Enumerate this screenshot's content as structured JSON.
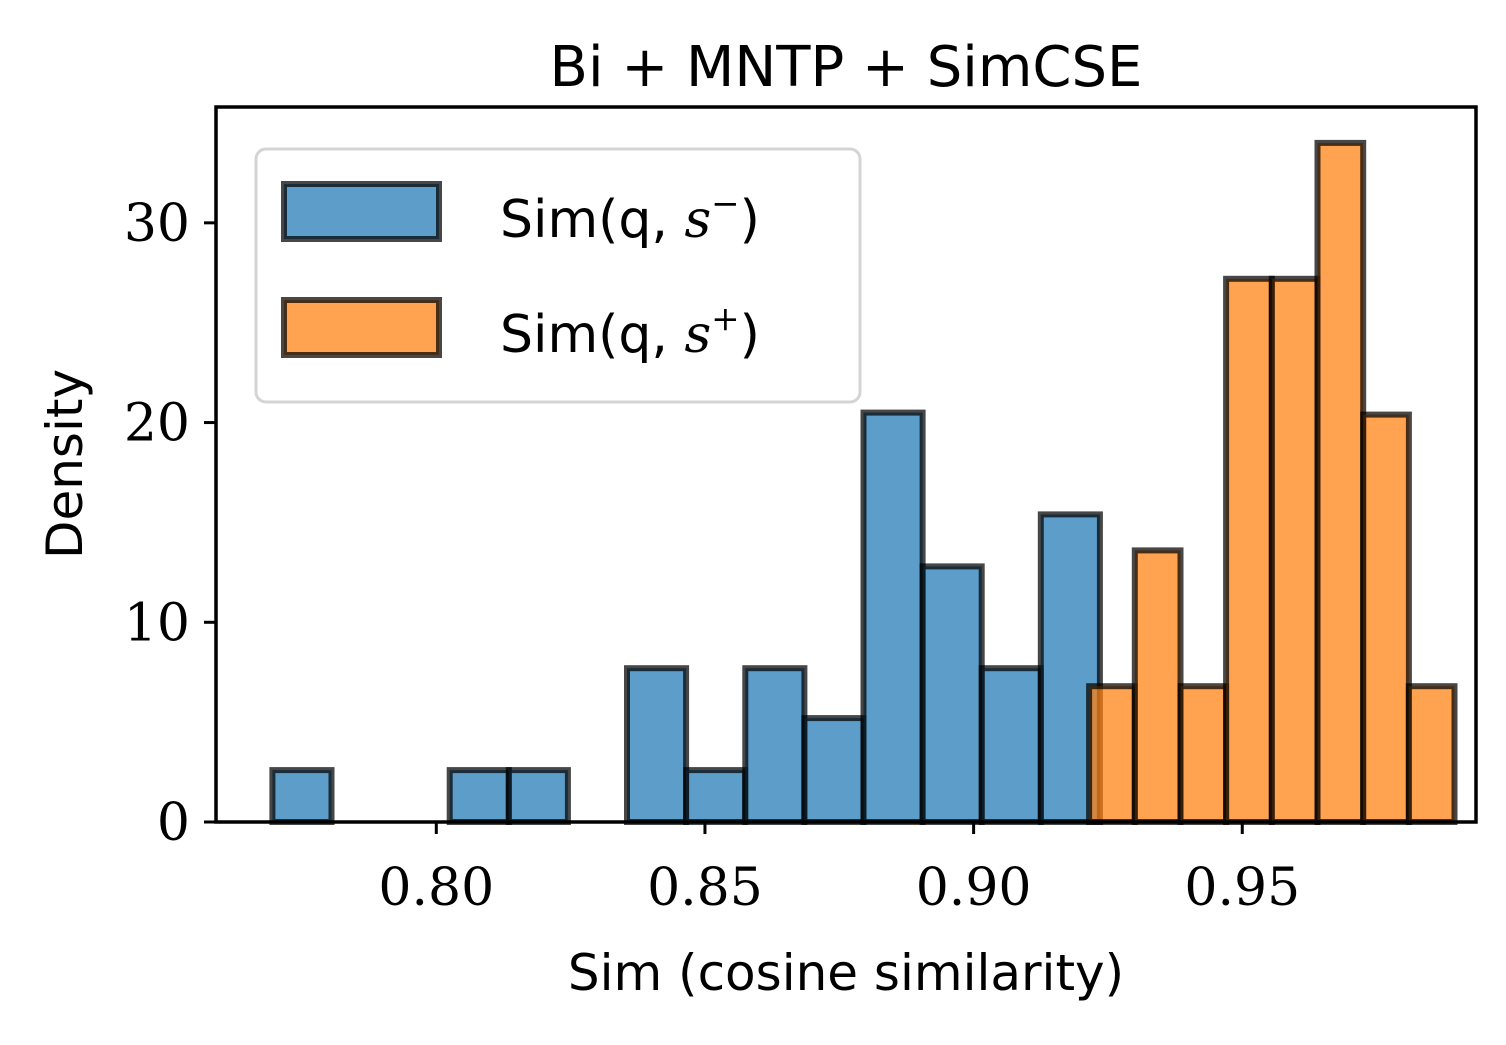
{
  "chart_data": {
    "type": "bar",
    "title": "Bi + MNTP + SimCSE",
    "xlabel": "Sim (cosine similarity)",
    "ylabel": "Density",
    "xlim": [
      0.759,
      0.9935
    ],
    "ylim": [
      0,
      35.8
    ],
    "xticks": [
      {
        "value": 0.8,
        "label": "0.80"
      },
      {
        "value": 0.85,
        "label": "0.85"
      },
      {
        "value": 0.9,
        "label": "0.90"
      },
      {
        "value": 0.95,
        "label": "0.95"
      }
    ],
    "yticks": [
      {
        "value": 0,
        "label": "0"
      },
      {
        "value": 10,
        "label": "10"
      },
      {
        "value": 20,
        "label": "20"
      },
      {
        "value": 30,
        "label": "30"
      }
    ],
    "grid": false,
    "legend_position": "top-left",
    "series": [
      {
        "name": "Sim(q, s⁻)",
        "legend_main": "Sim(q, ",
        "legend_var": "s",
        "legend_sup": "−",
        "legend_close": ")",
        "color": "#1f77b4",
        "edge": "#000000",
        "bins": [
          {
            "x0": 0.7695,
            "x1": 0.7805,
            "v": 2.6
          },
          {
            "x0": 0.7805,
            "x1": 0.7915,
            "v": 0
          },
          {
            "x0": 0.7915,
            "x1": 0.8025,
            "v": 0
          },
          {
            "x0": 0.8025,
            "x1": 0.8135,
            "v": 2.6
          },
          {
            "x0": 0.8135,
            "x1": 0.8245,
            "v": 2.6
          },
          {
            "x0": 0.8245,
            "x1": 0.8355,
            "v": 0
          },
          {
            "x0": 0.8355,
            "x1": 0.8465,
            "v": 7.7
          },
          {
            "x0": 0.8465,
            "x1": 0.8575,
            "v": 2.6
          },
          {
            "x0": 0.8575,
            "x1": 0.8685,
            "v": 7.7
          },
          {
            "x0": 0.8685,
            "x1": 0.8795,
            "v": 5.2
          },
          {
            "x0": 0.8795,
            "x1": 0.8905,
            "v": 20.5
          },
          {
            "x0": 0.8905,
            "x1": 0.9015,
            "v": 12.8
          },
          {
            "x0": 0.9015,
            "x1": 0.9125,
            "v": 7.7
          },
          {
            "x0": 0.9125,
            "x1": 0.9235,
            "v": 15.4
          }
        ]
      },
      {
        "name": "Sim(q, s⁺)",
        "legend_main": "Sim(q, ",
        "legend_var": "s",
        "legend_sup": "+",
        "legend_close": ")",
        "color": "#ff7f0e",
        "edge": "#000000",
        "bins": [
          {
            "x0": 0.9215,
            "x1": 0.93,
            "v": 6.8
          },
          {
            "x0": 0.93,
            "x1": 0.9385,
            "v": 13.6
          },
          {
            "x0": 0.9385,
            "x1": 0.947,
            "v": 6.8
          },
          {
            "x0": 0.947,
            "x1": 0.9555,
            "v": 27.2
          },
          {
            "x0": 0.9555,
            "x1": 0.964,
            "v": 27.2
          },
          {
            "x0": 0.964,
            "x1": 0.9725,
            "v": 34.0
          },
          {
            "x0": 0.9725,
            "x1": 0.981,
            "v": 20.4
          },
          {
            "x0": 0.981,
            "x1": 0.9895,
            "v": 6.8
          }
        ]
      }
    ]
  }
}
